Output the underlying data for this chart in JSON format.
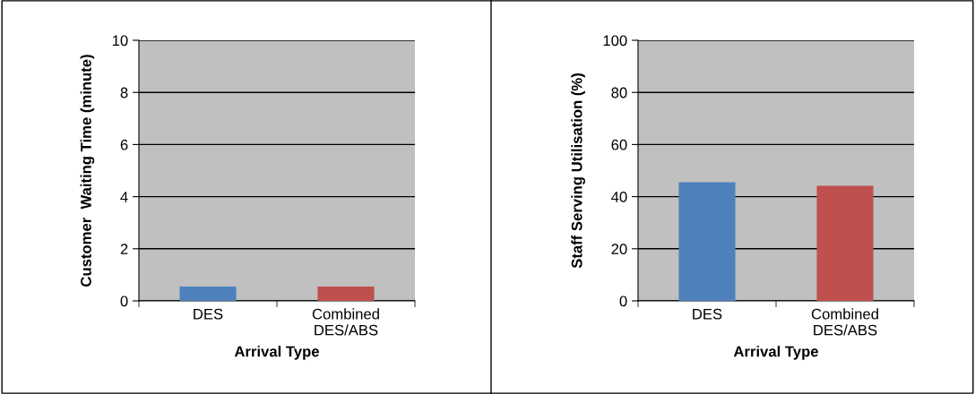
{
  "chart_data": [
    {
      "type": "bar",
      "xlabel": "Arrival Type",
      "ylabel": "Customer  Waiting Time (minute)",
      "categories": [
        "DES",
        "Combined\nDES/ABS"
      ],
      "colors": [
        "#4f81bd",
        "#c0504d"
      ],
      "values": [
        0.55,
        0.55
      ],
      "ylim": [
        0,
        10
      ],
      "yticks": [
        0,
        2,
        4,
        6,
        8,
        10
      ],
      "grid": "y"
    },
    {
      "type": "bar",
      "xlabel": "Arrival Type",
      "ylabel": "Staff Serving Utilisation (%)",
      "categories": [
        "DES",
        "Combined\nDES/ABS"
      ],
      "colors": [
        "#4f81bd",
        "#c0504d"
      ],
      "values": [
        45.5,
        44.2
      ],
      "ylim": [
        0,
        100
      ],
      "yticks": [
        0,
        20,
        40,
        60,
        80,
        100
      ],
      "grid": "y"
    }
  ]
}
